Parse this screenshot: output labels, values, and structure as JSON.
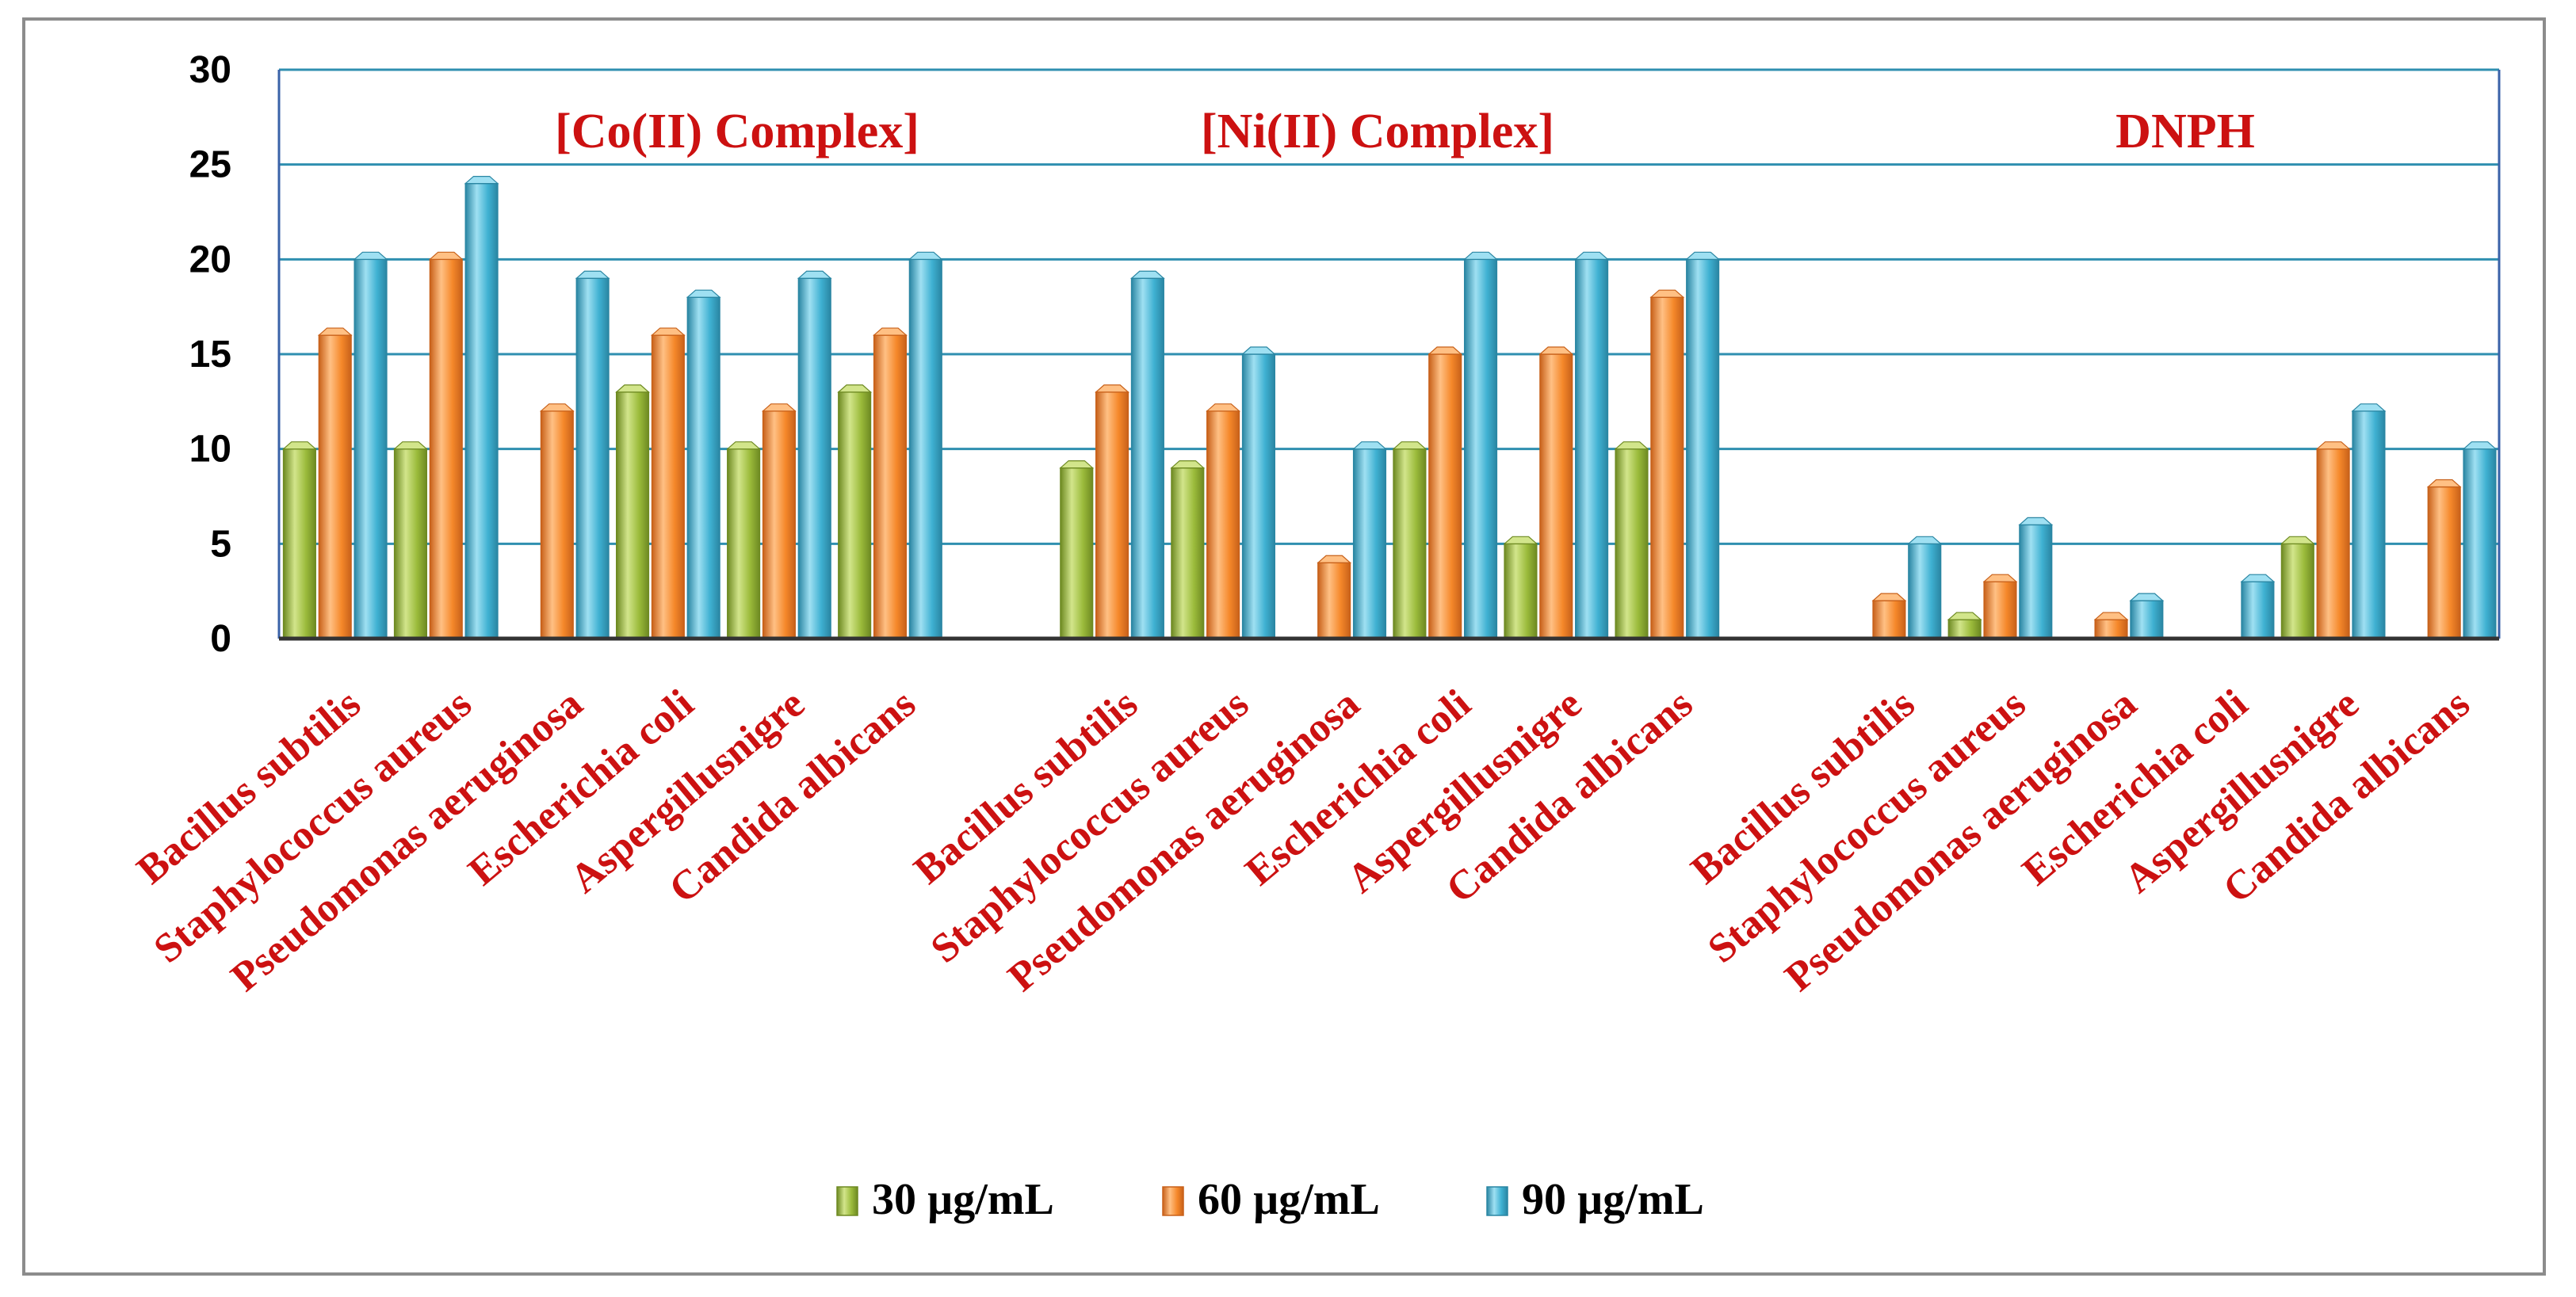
{
  "chart_data": {
    "type": "bar",
    "title": "",
    "xlabel": "",
    "ylabel": "",
    "ylim": [
      0,
      30
    ],
    "yticks": [
      "0",
      "5",
      "10",
      "15",
      "20",
      "25",
      "30"
    ],
    "grid": true,
    "legend_position": "bottom",
    "groups": [
      {
        "label": "[Co(II) Complex]",
        "categories": [
          "Bacillus subtilis",
          "Staphylococcus aureus",
          "Pseudomonas aeruginosa",
          "Escherichia coli",
          "Aspergillusnigre",
          "Candida albicans"
        ],
        "series": [
          {
            "name": "30 µg/mL",
            "values": [
              10,
              10,
              0,
              13,
              10,
              13
            ]
          },
          {
            "name": "60 µg/mL",
            "values": [
              16,
              20,
              12,
              16,
              12,
              16
            ]
          },
          {
            "name": "90 µg/mL",
            "values": [
              20,
              24,
              19,
              18,
              19,
              20
            ]
          }
        ]
      },
      {
        "label": "[Ni(II) Complex]",
        "categories": [
          "Bacillus subtilis",
          "Staphylococcus aureus",
          "Pseudomonas aeruginosa",
          "Escherichia coli",
          "Aspergillusnigre",
          "Candida albicans"
        ],
        "series": [
          {
            "name": "30 µg/mL",
            "values": [
              9,
              9,
              0,
              10,
              5,
              10
            ]
          },
          {
            "name": "60 µg/mL",
            "values": [
              13,
              12,
              4,
              15,
              15,
              18
            ]
          },
          {
            "name": "90 µg/mL",
            "values": [
              19,
              15,
              10,
              20,
              20,
              20
            ]
          }
        ]
      },
      {
        "label": "DNPH",
        "categories": [
          "Bacillus subtilis",
          "Staphylococcus aureus",
          "Pseudomonas aeruginosa",
          "Escherichia coli",
          "Aspergillusnigre",
          "Candida albicans"
        ],
        "series": [
          {
            "name": "30 µg/mL",
            "values": [
              0,
              1,
              0,
              0,
              5,
              0
            ]
          },
          {
            "name": "60 µg/mL",
            "values": [
              2,
              3,
              1,
              0,
              10,
              8
            ]
          },
          {
            "name": "90 µg/mL",
            "values": [
              5,
              6,
              2,
              3,
              12,
              10
            ]
          }
        ]
      }
    ],
    "legend": [
      "30 µg/mL",
      "60 µg/mL",
      "90 µg/mL"
    ]
  },
  "colors": {
    "series": [
      "#9bbb3b",
      "#f5882a",
      "#3fb1d2"
    ],
    "series_dark": [
      "#6e8a22",
      "#c8611a",
      "#2a86a3"
    ],
    "series_light": [
      "#d2e58b",
      "#ffc084",
      "#9fe0f2"
    ],
    "grid": "#2f8fb0",
    "axis": "#3a62a8",
    "labels": "#cc1111"
  }
}
